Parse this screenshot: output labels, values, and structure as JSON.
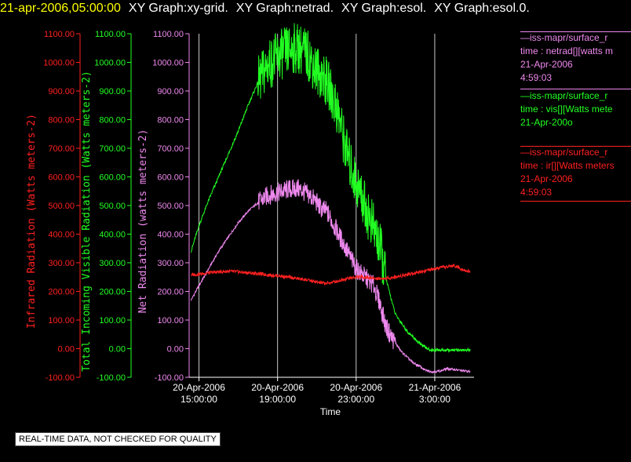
{
  "header": {
    "timestamp": "21-apr-2006,05:00:00",
    "graph_titles": [
      "XY Graph:xy-grid.",
      "XY Graph:netrad.",
      "XY Graph:esol.",
      "XY Graph:esol.0."
    ]
  },
  "colors": {
    "red": "#ff2020",
    "green": "#22ff22",
    "violet": "#ee88ee",
    "grid": "#c8c8c8"
  },
  "legend": [
    {
      "color": "#ee88ee",
      "lines": [
        "—iss-mapr/surface_r",
        "time : netrad[][watts m",
        "21-Apr-2006",
        "4:59:03"
      ]
    },
    {
      "color": "#22ff22",
      "lines": [
        "—iss-mapr/surface_r",
        "time : vis[][Watts mete",
        "21-Apr-200o"
      ]
    },
    {
      "color": "#ff2020",
      "lines": [
        "—iss-mapr/surface_r",
        "time : ir[][Watts meters",
        "21-Apr-2006",
        "4:59:03"
      ]
    }
  ],
  "notice": "REAL-TIME DATA, NOT CHECKED FOR QUALITY",
  "chart_data": {
    "type": "line",
    "xlabel": "Time",
    "x_ticks": [
      {
        "hour": 15,
        "date": "20-Apr-2006",
        "time": "15:00:00"
      },
      {
        "hour": 19,
        "date": "20-Apr-2006",
        "time": "19:00:00"
      },
      {
        "hour": 23,
        "date": "20-Apr-2006",
        "time": "23:00:00"
      },
      {
        "hour": 27,
        "date": "21-Apr-2006",
        "time": "3:00:00"
      }
    ],
    "xlim": [
      14.5,
      29.0
    ],
    "y_axes": [
      {
        "label": "Infrared Radiation (Watts meters-2)",
        "color": "#ff2020",
        "ylim": [
          -100,
          1100
        ]
      },
      {
        "label": "Total Incoming Visible Radiation (Watts meters-2)",
        "color": "#22ff22",
        "ylim": [
          -100,
          1100
        ]
      },
      {
        "label": "Net Radiation (watts meters-2)",
        "color": "#ee88ee",
        "ylim": [
          -100,
          1100
        ]
      }
    ],
    "y_ticks": [
      "1100.00",
      "1000.00",
      "900.00",
      "800.00",
      "700.00",
      "600.00",
      "500.00",
      "400.00",
      "300.00",
      "200.00",
      "100.00",
      "0.00",
      "-100.00"
    ],
    "grid": "vertical at major ticks",
    "series": [
      {
        "name": "netrad",
        "color": "#ee88ee",
        "x": [
          14.6,
          15,
          15.5,
          16,
          16.5,
          17,
          17.5,
          18,
          18.5,
          19,
          19.5,
          20,
          20.3,
          20.6,
          20.9,
          21.2,
          21.5,
          21.8,
          22.1,
          22.4,
          22.7,
          23,
          23.3,
          23.6,
          23.9,
          24.2,
          24.5,
          24.8,
          25,
          25.3,
          25.6,
          25.9,
          26.2,
          26.5,
          26.8,
          27,
          27.3,
          27.6,
          27.9,
          28.2,
          28.5,
          28.8
        ],
        "y": [
          170,
          220,
          280,
          340,
          390,
          440,
          480,
          510,
          535,
          545,
          555,
          560,
          550,
          535,
          520,
          490,
          480,
          440,
          400,
          360,
          320,
          280,
          260,
          240,
          220,
          160,
          80,
          40,
          20,
          -10,
          -30,
          -50,
          -60,
          -75,
          -80,
          -80,
          -78,
          -70,
          -72,
          -75,
          -78,
          -80
        ]
      },
      {
        "name": "vis",
        "color": "#22ff22",
        "x": [
          14.6,
          15,
          15.5,
          16,
          16.5,
          17,
          17.5,
          18,
          18.5,
          19,
          19.5,
          20,
          20.3,
          20.6,
          20.9,
          21.2,
          21.5,
          21.8,
          22.1,
          22.4,
          22.7,
          23,
          23.3,
          23.6,
          23.9,
          24.2,
          24.5,
          24.8,
          25,
          25.3,
          25.6,
          25.9,
          26.2,
          26.5,
          26.8,
          27,
          27.5,
          28,
          28.5,
          28.8
        ],
        "y": [
          340,
          430,
          520,
          600,
          680,
          760,
          850,
          930,
          990,
          1020,
          1040,
          1050,
          1040,
          1020,
          980,
          960,
          930,
          880,
          820,
          720,
          640,
          580,
          530,
          470,
          420,
          360,
          250,
          170,
          120,
          90,
          60,
          40,
          20,
          5,
          -5,
          -5,
          -5,
          -5,
          -5,
          -5
        ]
      },
      {
        "name": "ir",
        "color": "#ff2020",
        "x": [
          14.6,
          15,
          15.5,
          16,
          16.5,
          17,
          17.5,
          18,
          18.5,
          19,
          19.5,
          20,
          20.5,
          21,
          21.5,
          22,
          22.5,
          23,
          23.5,
          24,
          24.5,
          25,
          25.5,
          26,
          26.5,
          27,
          27.5,
          28,
          28.5,
          28.8
        ],
        "y": [
          258,
          260,
          265,
          268,
          270,
          268,
          265,
          262,
          258,
          255,
          250,
          245,
          240,
          232,
          228,
          235,
          245,
          250,
          250,
          245,
          245,
          250,
          258,
          265,
          272,
          278,
          285,
          290,
          275,
          268
        ]
      }
    ]
  }
}
